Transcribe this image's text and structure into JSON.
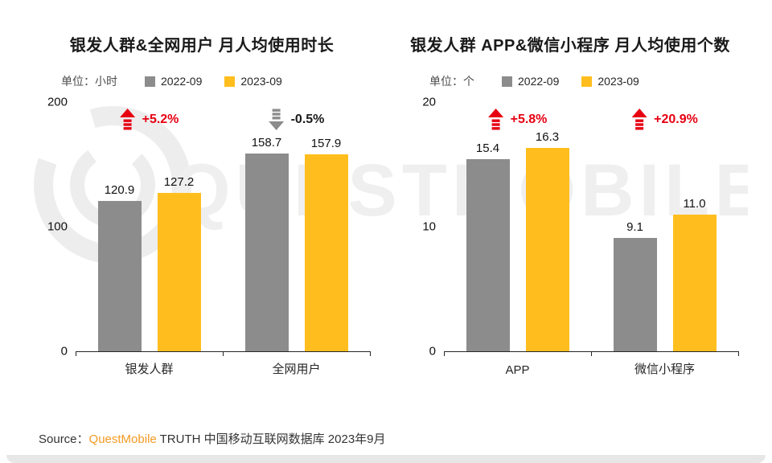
{
  "page": {
    "watermark": "QUESTMOBILE",
    "source_prefix": "Source：",
    "source_brand": "QuestMobile",
    "source_rest": " TRUTH 中国移动互联网数据库 2023年9月"
  },
  "colors": {
    "gray": "#8c8c8c",
    "yellow": "#ffbe1e",
    "red": "#e60012",
    "down_arrow_gray": "#8c8c8c"
  },
  "chart_data": [
    {
      "type": "bar",
      "title": "银发人群&全网用户 月人均使用时长",
      "unit_label": "单位：小时",
      "legend": [
        "2022-09",
        "2023-09"
      ],
      "legend_position": "top",
      "grid": false,
      "categories": [
        "银发人群",
        "全网用户"
      ],
      "series": [
        {
          "name": "2022-09",
          "color": "#8c8c8c",
          "values": [
            120.9,
            158.7
          ]
        },
        {
          "name": "2023-09",
          "color": "#ffbe1e",
          "values": [
            127.2,
            157.9
          ]
        }
      ],
      "ylim": [
        0,
        200
      ],
      "yticks": [
        0,
        100,
        200
      ],
      "annotations": [
        {
          "text": "+5.2%",
          "direction": "up",
          "color": "red"
        },
        {
          "text": "-0.5%",
          "direction": "down",
          "color": "gray"
        }
      ]
    },
    {
      "type": "bar",
      "title": "银发人群 APP&微信小程序 月人均使用个数",
      "unit_label": "单位：个",
      "legend": [
        "2022-09",
        "2023-09"
      ],
      "legend_position": "top",
      "grid": false,
      "categories": [
        "APP",
        "微信小程序"
      ],
      "series": [
        {
          "name": "2022-09",
          "color": "#8c8c8c",
          "values": [
            15.4,
            9.1
          ]
        },
        {
          "name": "2023-09",
          "color": "#ffbe1e",
          "values": [
            16.3,
            11.0
          ]
        }
      ],
      "ylim": [
        0,
        20
      ],
      "yticks": [
        0,
        10,
        20
      ],
      "annotations": [
        {
          "text": "+5.8%",
          "direction": "up",
          "color": "red"
        },
        {
          "text": "+20.9%",
          "direction": "up",
          "color": "red"
        }
      ]
    }
  ]
}
